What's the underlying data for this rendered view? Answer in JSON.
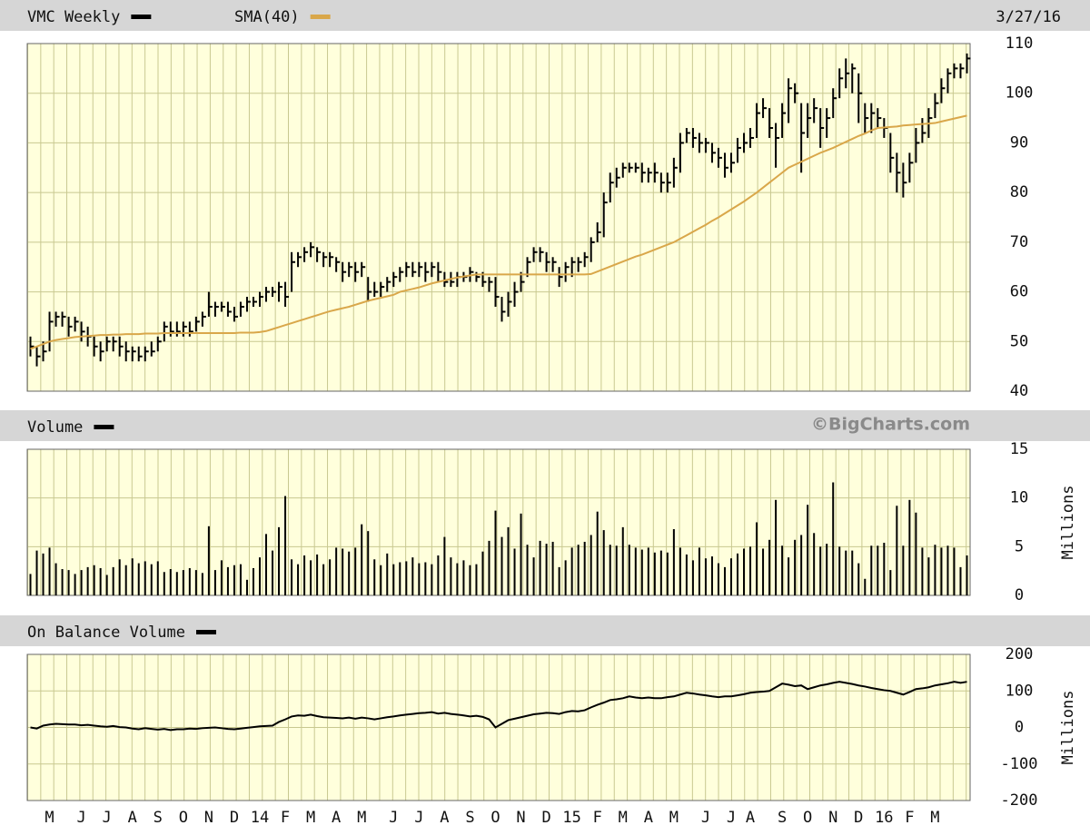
{
  "chart_data": [
    {
      "type": "ohlc",
      "date": "3/27/16",
      "categories": [
        null,
        null,
        null,
        "M",
        null,
        null,
        null,
        null,
        "J",
        null,
        null,
        null,
        "J",
        null,
        null,
        null,
        "A",
        null,
        null,
        null,
        "S",
        null,
        null,
        null,
        "O",
        null,
        null,
        null,
        "N",
        null,
        null,
        null,
        "D",
        null,
        null,
        null,
        "14",
        null,
        null,
        null,
        "F",
        null,
        null,
        null,
        "M",
        null,
        null,
        null,
        "A",
        null,
        null,
        null,
        "M",
        null,
        null,
        null,
        null,
        "J",
        null,
        null,
        null,
        "J",
        null,
        null,
        null,
        "A",
        null,
        null,
        null,
        "S",
        null,
        null,
        null,
        "O",
        null,
        null,
        null,
        "N",
        null,
        null,
        null,
        "D",
        null,
        null,
        null,
        "15",
        null,
        null,
        null,
        "F",
        null,
        null,
        null,
        "M",
        null,
        null,
        null,
        "A",
        null,
        null,
        null,
        "M",
        null,
        null,
        null,
        null,
        "J",
        null,
        null,
        null,
        "J",
        null,
        null,
        "A",
        null,
        null,
        null,
        null,
        "S",
        null,
        null,
        null,
        "O",
        null,
        null,
        null,
        "N",
        null,
        null,
        null,
        "D",
        null,
        null,
        null,
        "16",
        null,
        null,
        null,
        "F",
        null,
        null,
        null,
        "M",
        null,
        null,
        null,
        null,
        null
      ],
      "series": [
        {
          "name": "VMC Weekly",
          "color": "#000000",
          "high": [
            51,
            49,
            50,
            56,
            56,
            56,
            55,
            55,
            54,
            53,
            51,
            50,
            51,
            51,
            51,
            50,
            49,
            49,
            49,
            50,
            51,
            54,
            54,
            54,
            54,
            54,
            55,
            56,
            60,
            58,
            58,
            58,
            57,
            58,
            59,
            59,
            60,
            61,
            61,
            62,
            62,
            68,
            68,
            69,
            70,
            69,
            68,
            68,
            67,
            66,
            66,
            66,
            66,
            63,
            62,
            62,
            63,
            64,
            65,
            66,
            66,
            66,
            66,
            66,
            66,
            64,
            64,
            64,
            64,
            65,
            64,
            64,
            63,
            63,
            59,
            60,
            62,
            64,
            67,
            69,
            69,
            68,
            67,
            65,
            66,
            67,
            67,
            68,
            71,
            74,
            80,
            84,
            85,
            86,
            86,
            86,
            86,
            85,
            86,
            84,
            84,
            87,
            92,
            93,
            93,
            92,
            91,
            90,
            89,
            88,
            88,
            91,
            92,
            93,
            98,
            99,
            97,
            94,
            98,
            103,
            102,
            98,
            98,
            99,
            97,
            97,
            101,
            105,
            107,
            106,
            104,
            98,
            98,
            97,
            95,
            92,
            88,
            86,
            88,
            93,
            95,
            97,
            100,
            103,
            105,
            106,
            106,
            108
          ],
          "low": [
            47,
            45,
            46,
            48,
            53,
            53,
            51,
            52,
            50,
            49,
            47,
            46,
            48,
            48,
            47,
            46,
            46,
            46,
            46,
            47,
            48,
            50,
            51,
            51,
            51,
            51,
            52,
            53,
            55,
            55,
            56,
            55,
            54,
            55,
            56,
            57,
            57,
            58,
            59,
            58,
            57,
            60,
            65,
            66,
            67,
            66,
            65,
            65,
            64,
            62,
            63,
            62,
            63,
            58,
            59,
            59,
            60,
            61,
            62,
            63,
            63,
            63,
            62,
            63,
            62,
            61,
            61,
            61,
            62,
            62,
            62,
            61,
            60,
            57,
            54,
            55,
            57,
            60,
            63,
            66,
            66,
            64,
            64,
            61,
            62,
            63,
            64,
            65,
            66,
            70,
            71,
            78,
            81,
            83,
            84,
            84,
            82,
            82,
            82,
            80,
            80,
            81,
            84,
            90,
            89,
            88,
            88,
            86,
            85,
            83,
            84,
            86,
            88,
            89,
            91,
            95,
            91,
            85,
            91,
            94,
            98,
            84,
            91,
            94,
            89,
            91,
            95,
            99,
            101,
            100,
            94,
            92,
            92,
            93,
            91,
            84,
            80,
            79,
            82,
            86,
            90,
            91,
            95,
            98,
            100,
            103,
            103,
            104
          ],
          "close": [
            49,
            47,
            48,
            54,
            55,
            55,
            53,
            54,
            52,
            51,
            49,
            48,
            50,
            50,
            49,
            48,
            48,
            47,
            48,
            48,
            50,
            53,
            52,
            52,
            53,
            52,
            54,
            55,
            57,
            57,
            57,
            56,
            55,
            57,
            58,
            58,
            59,
            60,
            60,
            61,
            59,
            66,
            67,
            68,
            69,
            68,
            67,
            67,
            66,
            64,
            65,
            64,
            65,
            60,
            60,
            61,
            62,
            63,
            64,
            65,
            64,
            65,
            64,
            65,
            64,
            62,
            62,
            63,
            63,
            64,
            63,
            62,
            62,
            59,
            56,
            58,
            60,
            62,
            66,
            68,
            68,
            66,
            66,
            63,
            65,
            66,
            66,
            67,
            70,
            72,
            78,
            82,
            83,
            85,
            85,
            85,
            84,
            84,
            84,
            82,
            82,
            85,
            90,
            92,
            91,
            90,
            90,
            88,
            87,
            85,
            86,
            89,
            90,
            91,
            96,
            97,
            93,
            91,
            96,
            101,
            100,
            92,
            95,
            97,
            93,
            95,
            99,
            103,
            104,
            105,
            100,
            95,
            96,
            95,
            93,
            87,
            84,
            82,
            86,
            90,
            92,
            95,
            98,
            101,
            104,
            105,
            105,
            107
          ]
        },
        {
          "name": "SMA(40)",
          "color": "#d9a74a",
          "values": [
            48.5,
            49,
            49.5,
            50,
            50.3,
            50.5,
            50.7,
            50.9,
            51,
            51.1,
            51.2,
            51.3,
            51.3,
            51.4,
            51.4,
            51.5,
            51.5,
            51.5,
            51.6,
            51.6,
            51.6,
            51.7,
            51.7,
            51.7,
            51.7,
            51.7,
            51.7,
            51.7,
            51.7,
            51.7,
            51.7,
            51.7,
            51.7,
            51.8,
            51.8,
            51.8,
            51.9,
            52.1,
            52.5,
            52.9,
            53.3,
            53.7,
            54.1,
            54.5,
            54.9,
            55.3,
            55.7,
            56.1,
            56.4,
            56.7,
            57,
            57.4,
            57.8,
            58.2,
            58.5,
            58.8,
            59.1,
            59.4,
            60,
            60.3,
            60.6,
            60.9,
            61.3,
            61.7,
            62,
            62.3,
            62.6,
            62.9,
            63.1,
            63.3,
            63.5,
            63.5,
            63.5,
            63.5,
            63.5,
            63.5,
            63.5,
            63.5,
            63.5,
            63.5,
            63.5,
            63.5,
            63.5,
            63.5,
            63.5,
            63.5,
            63.5,
            63.5,
            63.6,
            64.1,
            64.6,
            65.1,
            65.6,
            66.1,
            66.6,
            67.1,
            67.5,
            68,
            68.5,
            69,
            69.5,
            70,
            70.7,
            71.4,
            72.1,
            72.8,
            73.5,
            74.3,
            75,
            75.8,
            76.6,
            77.4,
            78.2,
            79.1,
            80,
            81,
            82,
            83,
            84,
            85,
            85.6,
            86.2,
            86.8,
            87.4,
            88,
            88.5,
            89,
            89.6,
            90.2,
            90.8,
            91.4,
            91.9,
            92.5,
            93,
            93.1,
            93.2,
            93.3,
            93.5,
            93.6,
            93.7,
            93.8,
            93.9,
            94,
            94.3,
            94.6,
            94.9,
            95.2,
            95.5
          ]
        }
      ],
      "ylim": [
        40,
        110
      ],
      "yticks": [
        40,
        50,
        60,
        70,
        80,
        90,
        100,
        110
      ],
      "grid": true
    },
    {
      "type": "bar",
      "credit": "©BigCharts.com",
      "y_label": "Millions",
      "series": [
        {
          "name": "Volume",
          "color": "#000000",
          "values": [
            2.2,
            4.6,
            4.3,
            4.9,
            3.3,
            2.7,
            2.6,
            2.2,
            2.6,
            2.9,
            3.1,
            2.8,
            2.1,
            2.9,
            3.7,
            3.1,
            3.8,
            3.3,
            3.5,
            3.2,
            3.5,
            2.4,
            2.7,
            2.4,
            2.6,
            2.8,
            2.6,
            2.3,
            7.1,
            2.6,
            3.6,
            2.9,
            3.1,
            3.2,
            1.6,
            2.8,
            3.9,
            6.3,
            4.6,
            7.0,
            10.2,
            3.7,
            3.2,
            4.1,
            3.6,
            4.2,
            3.2,
            3.7,
            4.9,
            4.8,
            4.5,
            4.9,
            7.3,
            6.6,
            3.7,
            3.1,
            4.3,
            3.2,
            3.4,
            3.5,
            3.9,
            3.3,
            3.4,
            3.2,
            4.1,
            6.0,
            3.9,
            3.3,
            3.6,
            3.1,
            3.2,
            4.5,
            5.6,
            8.7,
            6.0,
            7.0,
            4.8,
            8.4,
            5.2,
            3.9,
            5.6,
            5.3,
            5.5,
            2.9,
            3.6,
            4.9,
            5.2,
            5.5,
            6.2,
            8.6,
            6.7,
            5.2,
            5.1,
            7.0,
            5.2,
            4.9,
            4.7,
            4.9,
            4.4,
            4.6,
            4.4,
            6.8,
            4.9,
            4.2,
            3.6,
            4.9,
            3.8,
            4.0,
            3.3,
            2.9,
            3.8,
            4.3,
            4.8,
            5.0,
            7.5,
            4.8,
            5.7,
            9.8,
            5.1,
            3.9,
            5.7,
            6.2,
            9.3,
            6.4,
            5.0,
            5.3,
            11.6,
            5.0,
            4.6,
            4.6,
            3.3,
            1.7,
            5.1,
            5.1,
            5.4,
            2.6,
            9.2,
            5.1,
            9.8,
            8.5,
            4.9,
            3.9,
            5.2,
            4.9,
            5.1,
            4.9,
            2.9,
            4.1
          ]
        }
      ],
      "ylim": [
        0,
        15
      ],
      "yticks": [
        0,
        5,
        10,
        15
      ],
      "grid": true
    },
    {
      "type": "line",
      "y_label": "Millions",
      "series": [
        {
          "name": "On Balance Volume",
          "color": "#000000",
          "values": [
            0,
            -3,
            5,
            8,
            10,
            9,
            8,
            8,
            6,
            7,
            5,
            3,
            2,
            4,
            1,
            0,
            -3,
            -5,
            -2,
            -4,
            -6,
            -4,
            -7,
            -5,
            -5,
            -3,
            -4,
            -2,
            -1,
            0,
            -2,
            -4,
            -5,
            -3,
            -1,
            1,
            3,
            4,
            5,
            15,
            22,
            30,
            33,
            32,
            35,
            31,
            28,
            27,
            26,
            25,
            27,
            24,
            27,
            25,
            22,
            25,
            28,
            30,
            33,
            35,
            37,
            39,
            40,
            42,
            38,
            40,
            37,
            35,
            33,
            30,
            32,
            29,
            22,
            0,
            10,
            20,
            24,
            28,
            32,
            36,
            38,
            40,
            39,
            37,
            42,
            45,
            44,
            47,
            55,
            62,
            68,
            75,
            77,
            80,
            85,
            82,
            80,
            82,
            80,
            80,
            83,
            85,
            90,
            95,
            93,
            90,
            88,
            85,
            83,
            85,
            85,
            88,
            91,
            95,
            97,
            98,
            100,
            110,
            120,
            117,
            113,
            115,
            105,
            110,
            115,
            118,
            122,
            125,
            122,
            119,
            115,
            112,
            108,
            105,
            102,
            100,
            95,
            90,
            97,
            105,
            107,
            110,
            115,
            118,
            121,
            125,
            122,
            125
          ]
        }
      ],
      "ylim": [
        -200,
        200
      ],
      "yticks": [
        -200,
        -100,
        0,
        100,
        200
      ],
      "grid": true
    }
  ]
}
